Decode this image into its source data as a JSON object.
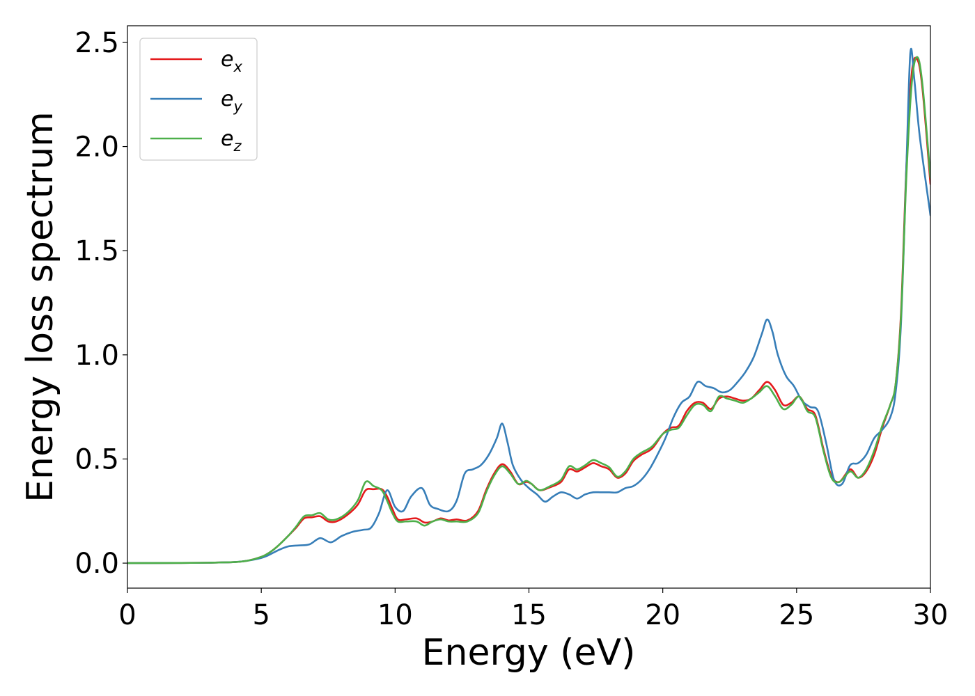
{
  "chart_data": {
    "type": "line",
    "title": "",
    "xlabel": "Energy (eV)",
    "ylabel": "Energy loss spectrum",
    "xlim": [
      0,
      30
    ],
    "ylim": [
      -0.12,
      2.58
    ],
    "xticks": [
      "0",
      "5",
      "10",
      "15",
      "20",
      "25",
      "30"
    ],
    "yticks": [
      "0.0",
      "0.5",
      "1.0",
      "1.5",
      "2.0",
      "2.5"
    ],
    "grid": false,
    "legend_position": "upper-left",
    "series": [
      {
        "name": "e_x",
        "legend_base": "e",
        "legend_sub": "x",
        "color": "#e41a1c",
        "x": [
          0,
          2,
          3,
          4,
          4.5,
          5,
          5.3,
          5.6,
          6,
          6.3,
          6.6,
          6.9,
          7.2,
          7.5,
          7.8,
          8.2,
          8.6,
          8.9,
          9.2,
          9.5,
          9.7,
          9.9,
          10.1,
          10.4,
          10.8,
          11.1,
          11.4,
          11.7,
          12,
          12.3,
          12.7,
          13.1,
          13.4,
          13.7,
          14,
          14.3,
          14.6,
          14.9,
          15.1,
          15.4,
          15.8,
          16.2,
          16.5,
          16.8,
          17.1,
          17.4,
          17.7,
          18,
          18.3,
          18.6,
          18.9,
          19.2,
          19.6,
          20,
          20.3,
          20.6,
          20.9,
          21.2,
          21.5,
          21.8,
          22.1,
          22.4,
          22.7,
          23,
          23.3,
          23.6,
          23.9,
          24.2,
          24.5,
          24.8,
          25.1,
          25.4,
          25.7,
          26,
          26.3,
          26.6,
          27,
          27.3,
          27.6,
          27.9,
          28.2,
          28.5,
          28.7,
          28.9,
          29.1,
          29.3,
          29.5,
          29.7,
          30
        ],
        "y": [
          0,
          0.001,
          0.002,
          0.005,
          0.012,
          0.03,
          0.05,
          0.08,
          0.13,
          0.17,
          0.215,
          0.22,
          0.225,
          0.2,
          0.2,
          0.23,
          0.28,
          0.35,
          0.355,
          0.355,
          0.32,
          0.26,
          0.21,
          0.21,
          0.215,
          0.195,
          0.2,
          0.215,
          0.205,
          0.21,
          0.205,
          0.25,
          0.35,
          0.43,
          0.475,
          0.44,
          0.38,
          0.39,
          0.38,
          0.35,
          0.365,
          0.39,
          0.45,
          0.44,
          0.46,
          0.48,
          0.465,
          0.45,
          0.41,
          0.43,
          0.49,
          0.52,
          0.55,
          0.62,
          0.65,
          0.66,
          0.73,
          0.77,
          0.77,
          0.74,
          0.79,
          0.8,
          0.79,
          0.78,
          0.79,
          0.83,
          0.87,
          0.83,
          0.76,
          0.77,
          0.8,
          0.74,
          0.71,
          0.55,
          0.42,
          0.39,
          0.45,
          0.41,
          0.44,
          0.52,
          0.65,
          0.76,
          0.86,
          1.2,
          1.9,
          2.35,
          2.42,
          2.28,
          1.82
        ]
      },
      {
        "name": "e_y",
        "legend_base": "e",
        "legend_sub": "y",
        "color": "#377eb8",
        "x": [
          0,
          2,
          3,
          4,
          4.5,
          5,
          5.3,
          5.6,
          6,
          6.4,
          6.8,
          7.2,
          7.6,
          8,
          8.4,
          8.8,
          9.1,
          9.4,
          9.7,
          10,
          10.3,
          10.6,
          11,
          11.3,
          11.6,
          12,
          12.3,
          12.6,
          12.9,
          13.2,
          13.5,
          13.8,
          14,
          14.2,
          14.4,
          14.7,
          15,
          15.3,
          15.6,
          15.9,
          16.2,
          16.5,
          16.8,
          17.1,
          17.4,
          17.7,
          18,
          18.3,
          18.6,
          18.9,
          19.2,
          19.5,
          19.8,
          20.1,
          20.4,
          20.7,
          21,
          21.3,
          21.6,
          21.9,
          22.2,
          22.5,
          22.8,
          23.1,
          23.4,
          23.7,
          23.9,
          24.1,
          24.3,
          24.6,
          24.9,
          25.2,
          25.5,
          25.8,
          26.1,
          26.4,
          26.7,
          27,
          27.3,
          27.6,
          27.9,
          28.2,
          28.5,
          28.7,
          28.9,
          29.1,
          29.25,
          29.4,
          29.6,
          30
        ],
        "y": [
          0,
          0.001,
          0.002,
          0.005,
          0.012,
          0.025,
          0.04,
          0.06,
          0.08,
          0.085,
          0.09,
          0.12,
          0.1,
          0.13,
          0.15,
          0.16,
          0.17,
          0.24,
          0.35,
          0.27,
          0.25,
          0.32,
          0.36,
          0.28,
          0.26,
          0.25,
          0.3,
          0.43,
          0.45,
          0.47,
          0.52,
          0.6,
          0.67,
          0.58,
          0.47,
          0.4,
          0.36,
          0.33,
          0.295,
          0.32,
          0.34,
          0.33,
          0.31,
          0.33,
          0.34,
          0.34,
          0.34,
          0.34,
          0.36,
          0.37,
          0.4,
          0.45,
          0.52,
          0.6,
          0.7,
          0.77,
          0.8,
          0.87,
          0.85,
          0.84,
          0.82,
          0.83,
          0.87,
          0.92,
          0.99,
          1.1,
          1.17,
          1.11,
          1.0,
          0.9,
          0.85,
          0.78,
          0.75,
          0.73,
          0.58,
          0.4,
          0.38,
          0.47,
          0.48,
          0.52,
          0.6,
          0.64,
          0.7,
          0.82,
          1.15,
          1.9,
          2.45,
          2.32,
          2.05,
          1.67
        ]
      },
      {
        "name": "e_z",
        "legend_base": "e",
        "legend_sub": "z",
        "color": "#4daf4a",
        "x": [
          0,
          2,
          3,
          4,
          4.5,
          5,
          5.3,
          5.6,
          6,
          6.3,
          6.6,
          6.9,
          7.2,
          7.5,
          7.8,
          8.2,
          8.6,
          8.9,
          9.2,
          9.5,
          9.7,
          9.9,
          10.1,
          10.4,
          10.8,
          11.1,
          11.4,
          11.7,
          12,
          12.3,
          12.7,
          13.1,
          13.4,
          13.7,
          14,
          14.3,
          14.6,
          14.9,
          15.1,
          15.4,
          15.8,
          16.2,
          16.5,
          16.8,
          17.1,
          17.4,
          17.7,
          18,
          18.3,
          18.6,
          18.9,
          19.2,
          19.6,
          20,
          20.3,
          20.6,
          20.9,
          21.2,
          21.5,
          21.8,
          22.1,
          22.4,
          22.7,
          23,
          23.3,
          23.6,
          23.9,
          24.2,
          24.5,
          24.8,
          25.1,
          25.4,
          25.7,
          26,
          26.3,
          26.6,
          27,
          27.3,
          27.6,
          27.9,
          28.2,
          28.5,
          28.7,
          28.9,
          29.1,
          29.3,
          29.5,
          29.7,
          30
        ],
        "y": [
          0,
          0.001,
          0.002,
          0.005,
          0.012,
          0.03,
          0.05,
          0.08,
          0.13,
          0.175,
          0.225,
          0.23,
          0.24,
          0.21,
          0.21,
          0.24,
          0.3,
          0.39,
          0.37,
          0.35,
          0.3,
          0.24,
          0.2,
          0.2,
          0.2,
          0.18,
          0.2,
          0.21,
          0.2,
          0.2,
          0.2,
          0.24,
          0.34,
          0.42,
          0.465,
          0.43,
          0.38,
          0.395,
          0.38,
          0.35,
          0.37,
          0.4,
          0.465,
          0.45,
          0.47,
          0.495,
          0.48,
          0.46,
          0.415,
          0.44,
          0.5,
          0.53,
          0.56,
          0.62,
          0.64,
          0.65,
          0.71,
          0.76,
          0.76,
          0.73,
          0.8,
          0.79,
          0.78,
          0.77,
          0.79,
          0.82,
          0.85,
          0.8,
          0.74,
          0.76,
          0.8,
          0.73,
          0.7,
          0.54,
          0.41,
          0.39,
          0.44,
          0.41,
          0.45,
          0.54,
          0.66,
          0.76,
          0.86,
          1.18,
          1.85,
          2.3,
          2.43,
          2.3,
          1.85
        ]
      }
    ]
  }
}
